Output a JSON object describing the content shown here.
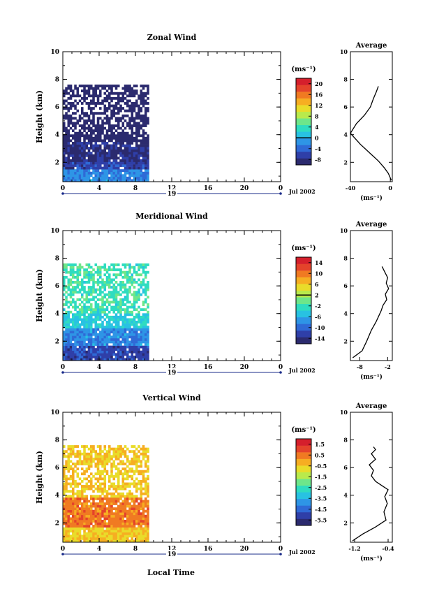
{
  "page": {
    "footer_label": "Local Time"
  },
  "colormap": [
    "#2b2a6e",
    "#2f3fa8",
    "#2f6ad6",
    "#2e95e6",
    "#28c2e2",
    "#2fdcc0",
    "#6ee68a",
    "#b9ea4c",
    "#e9dc2a",
    "#f6ae22",
    "#f07a22",
    "#e4432b",
    "#d51f2c"
  ],
  "time_axis": {
    "date_label": "Jul 2002",
    "day_label": "19",
    "ticks": [
      "0",
      "4",
      "8",
      "12",
      "16",
      "20",
      "0"
    ],
    "tick_values": [
      0,
      4,
      8,
      12,
      16,
      20,
      24
    ]
  },
  "height_axis": {
    "label": "Height (km)",
    "ticks": [
      "2",
      "4",
      "6",
      "8",
      "10"
    ],
    "tick_values": [
      2,
      4,
      6,
      8,
      10
    ],
    "range": [
      0.6,
      10
    ]
  },
  "average_title": "Average",
  "panels": [
    {
      "title": "Zonal Wind",
      "unit": "(ms⁻¹)",
      "colorbar_ticks": [
        "20",
        "16",
        "12",
        "8",
        "4",
        "0",
        "-4",
        "-8"
      ],
      "colorbar_tick_values": [
        20,
        16,
        12,
        8,
        4,
        0,
        -4,
        -8
      ],
      "colorbar_range": [
        -10,
        22
      ],
      "contour_level": 0,
      "avg_ticks": [
        "-40",
        "0"
      ],
      "avg_tick_values": [
        -40,
        0
      ]
    },
    {
      "title": "Meridional Wind",
      "unit": "(ms⁻¹)",
      "colorbar_ticks": [
        "14",
        "10",
        "6",
        "2",
        "-2",
        "-6",
        "-10",
        "-14"
      ],
      "colorbar_tick_values": [
        14,
        10,
        6,
        2,
        -2,
        -6,
        -10,
        -14
      ],
      "colorbar_range": [
        -16,
        16
      ],
      "contour_level": 2,
      "avg_ticks": [
        "-8",
        "-2"
      ],
      "avg_tick_values": [
        -8,
        -2
      ]
    },
    {
      "title": "Vertical Wind",
      "unit": "(ms⁻¹)",
      "colorbar_ticks": [
        "1.5",
        "0.5",
        "-0.5",
        "-1.5",
        "-2.5",
        "-3.5",
        "-4.5",
        "-5.5"
      ],
      "colorbar_tick_values": [
        1.5,
        0.5,
        -0.5,
        -1.5,
        -2.5,
        -3.5,
        -4.5,
        -5.5
      ],
      "colorbar_range": [
        -6,
        2
      ],
      "contour_level": null,
      "avg_ticks": [
        "-1.2",
        "-0.4"
      ],
      "avg_tick_values": [
        -1.2,
        -0.4
      ]
    }
  ],
  "chart_data": [
    {
      "type": "heatmap",
      "title": "Zonal Wind",
      "xlabel": "Local Time",
      "ylabel": "Height (km)",
      "xlim": [
        0,
        24
      ],
      "ylim": [
        0.6,
        10
      ],
      "data_time_range": [
        0,
        9.5
      ],
      "approx_layers": [
        {
          "height_range": [
            0.6,
            1.4
          ],
          "value": -2
        },
        {
          "height_range": [
            1.4,
            2.0
          ],
          "value": -6
        },
        {
          "height_range": [
            2.0,
            3.4
          ],
          "value": -8
        },
        {
          "height_range": [
            3.4,
            7.5
          ],
          "value": -10
        }
      ],
      "colorbar_range": [
        -10,
        22
      ],
      "average_profile": {
        "xlabel": "(ms⁻¹)",
        "xlim": [
          -40,
          2
        ],
        "x": [
          1,
          -2,
          -6,
          -12,
          -18,
          -24,
          -30,
          -40,
          -34,
          -26,
          -20,
          -17,
          -14,
          -12
        ],
        "y": [
          0.7,
          1.2,
          1.6,
          2.1,
          2.5,
          2.9,
          3.3,
          4.1,
          4.8,
          5.4,
          6.0,
          6.6,
          7.1,
          7.5
        ]
      }
    },
    {
      "type": "heatmap",
      "title": "Meridional Wind",
      "xlabel": "Local Time",
      "ylabel": "Height (km)",
      "xlim": [
        0,
        24
      ],
      "ylim": [
        0.6,
        10
      ],
      "data_time_range": [
        0,
        9.5
      ],
      "approx_layers": [
        {
          "height_range": [
            0.6,
            1.6
          ],
          "value": -12
        },
        {
          "height_range": [
            1.6,
            2.8
          ],
          "value": -8
        },
        {
          "height_range": [
            2.8,
            4.0
          ],
          "value": -4
        },
        {
          "height_range": [
            4.0,
            7.5
          ],
          "value": -2
        }
      ],
      "colorbar_range": [
        -16,
        16
      ],
      "average_profile": {
        "xlabel": "(ms⁻¹)",
        "xlim": [
          -10,
          -1
        ],
        "x": [
          -9.5,
          -7.5,
          -6.5,
          -5.5,
          -4.5,
          -3.8,
          -3.4,
          -3.0,
          -2.2,
          -2.5,
          -1.8,
          -2.3,
          -2.0,
          -2.6,
          -3.2
        ],
        "y": [
          0.8,
          1.3,
          2.0,
          2.8,
          3.4,
          3.9,
          4.2,
          4.6,
          5.0,
          5.4,
          5.8,
          6.2,
          6.6,
          7.0,
          7.4
        ]
      }
    },
    {
      "type": "heatmap",
      "title": "Vertical Wind",
      "xlabel": "Local Time",
      "ylabel": "Height (km)",
      "xlim": [
        0,
        24
      ],
      "ylim": [
        0.6,
        10
      ],
      "data_time_range": [
        0,
        9.5
      ],
      "approx_layers": [
        {
          "height_range": [
            0.6,
            1.6
          ],
          "value": -0.5
        },
        {
          "height_range": [
            1.6,
            3.8
          ],
          "value": 0.5
        },
        {
          "height_range": [
            3.8,
            7.5
          ],
          "value": -0.5
        }
      ],
      "colorbar_range": [
        -6,
        2
      ],
      "average_profile": {
        "xlabel": "(ms⁻¹)",
        "xlim": [
          -1.3,
          -0.3
        ],
        "x": [
          -1.25,
          -1.0,
          -0.7,
          -0.45,
          -0.5,
          -0.42,
          -0.48,
          -0.4,
          -0.55,
          -0.7,
          -0.8,
          -0.75,
          -0.85,
          -0.7,
          -0.8,
          -0.7,
          -0.75
        ],
        "y": [
          0.7,
          1.2,
          1.7,
          2.2,
          2.8,
          3.4,
          3.9,
          4.4,
          4.7,
          5.0,
          5.4,
          5.8,
          6.2,
          6.6,
          7.0,
          7.3,
          7.5
        ]
      }
    }
  ]
}
